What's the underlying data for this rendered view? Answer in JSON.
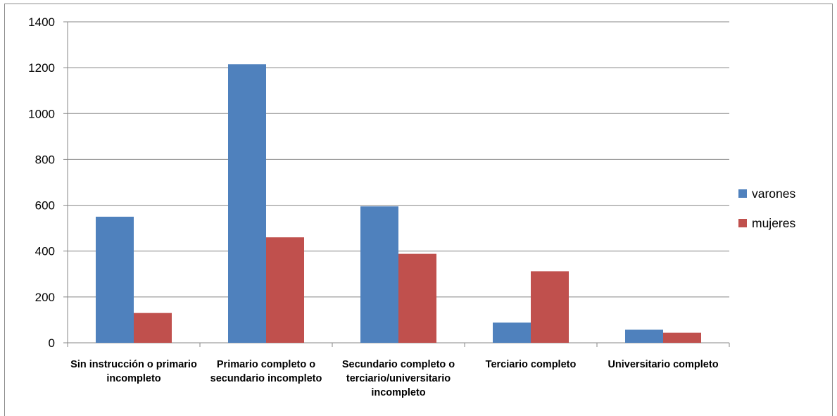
{
  "chart_data": {
    "type": "bar",
    "categories": [
      [
        "Sin instrucción o primario",
        "incompleto"
      ],
      [
        "Primario completo o",
        "secundario incompleto"
      ],
      [
        "Secundario completo o",
        "terciario/universitario",
        "incompleto"
      ],
      [
        "Terciario completo"
      ],
      [
        "Universitario completo"
      ]
    ],
    "series": [
      {
        "name": "varones",
        "color": "#4f81bd",
        "values": [
          550,
          1215,
          595,
          88,
          57
        ]
      },
      {
        "name": "mujeres",
        "color": "#c0504d",
        "values": [
          130,
          460,
          388,
          312,
          44
        ]
      }
    ],
    "ylim": [
      0,
      1400
    ],
    "yticks": [
      0,
      200,
      400,
      600,
      800,
      1000,
      1200,
      1400
    ],
    "grid": true,
    "legend_position": "right",
    "title": "",
    "xlabel": "",
    "ylabel": ""
  }
}
